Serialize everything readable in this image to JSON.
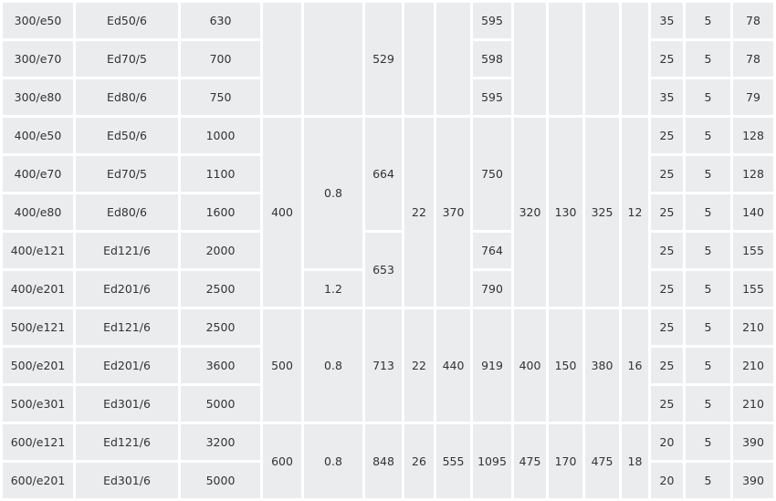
{
  "table": {
    "rows": [
      [
        "300/e50",
        "Ed50/6",
        "630",
        [
          "",
          3
        ],
        [
          "",
          3
        ],
        [
          "529",
          3
        ],
        [
          "",
          3
        ],
        [
          "",
          3
        ],
        "595",
        [
          "",
          3
        ],
        [
          "",
          3
        ],
        [
          "",
          3
        ],
        [
          "",
          3
        ],
        "35",
        "5",
        "78"
      ],
      [
        "300/e70",
        "Ed70/5",
        "700",
        "598",
        "25",
        "5",
        "78"
      ],
      [
        "300/e80",
        "Ed80/6",
        "750",
        "595",
        "35",
        "5",
        "79"
      ],
      [
        "400/e50",
        "Ed50/6",
        "1000",
        [
          "400",
          5
        ],
        [
          "0.8",
          4
        ],
        [
          "664",
          3
        ],
        [
          "22",
          5
        ],
        [
          "370",
          5
        ],
        [
          "750",
          3
        ],
        [
          "320",
          5
        ],
        [
          "130",
          5
        ],
        [
          "325",
          5
        ],
        [
          "12",
          5
        ],
        "25",
        "5",
        "128"
      ],
      [
        "400/e70",
        "Ed70/5",
        "1100",
        "25",
        "5",
        "128"
      ],
      [
        "400/e80",
        "Ed80/6",
        "1600",
        "25",
        "5",
        "140"
      ],
      [
        "400/e121",
        "Ed121/6",
        "2000",
        [
          "653",
          2
        ],
        "764",
        "25",
        "5",
        "155"
      ],
      [
        "400/e201",
        "Ed201/6",
        "2500",
        "1.2",
        "790",
        "25",
        "5",
        "155"
      ],
      [
        "500/e121",
        "Ed121/6",
        "2500",
        [
          "500",
          3
        ],
        [
          "0.8",
          3
        ],
        [
          "713",
          3
        ],
        [
          "22",
          3
        ],
        [
          "440",
          3
        ],
        [
          "919",
          3
        ],
        [
          "400",
          3
        ],
        [
          "150",
          3
        ],
        [
          "380",
          3
        ],
        [
          "16",
          3
        ],
        "25",
        "5",
        "210"
      ],
      [
        "500/e201",
        "Ed201/6",
        "3600",
        "25",
        "5",
        "210"
      ],
      [
        "500/e301",
        "Ed301/6",
        "5000",
        "25",
        "5",
        "210"
      ],
      [
        "600/e121",
        "Ed121/6",
        "3200",
        [
          "600",
          2
        ],
        [
          "0.8",
          2
        ],
        [
          "848",
          2
        ],
        [
          "26",
          2
        ],
        [
          "555",
          2
        ],
        [
          "1095",
          2
        ],
        [
          "475",
          2
        ],
        [
          "170",
          2
        ],
        [
          "475",
          2
        ],
        [
          "18",
          2
        ],
        "20",
        "5",
        "390"
      ],
      [
        "600/e201",
        "Ed301/6",
        "5000",
        "20",
        "5",
        "390"
      ]
    ]
  }
}
